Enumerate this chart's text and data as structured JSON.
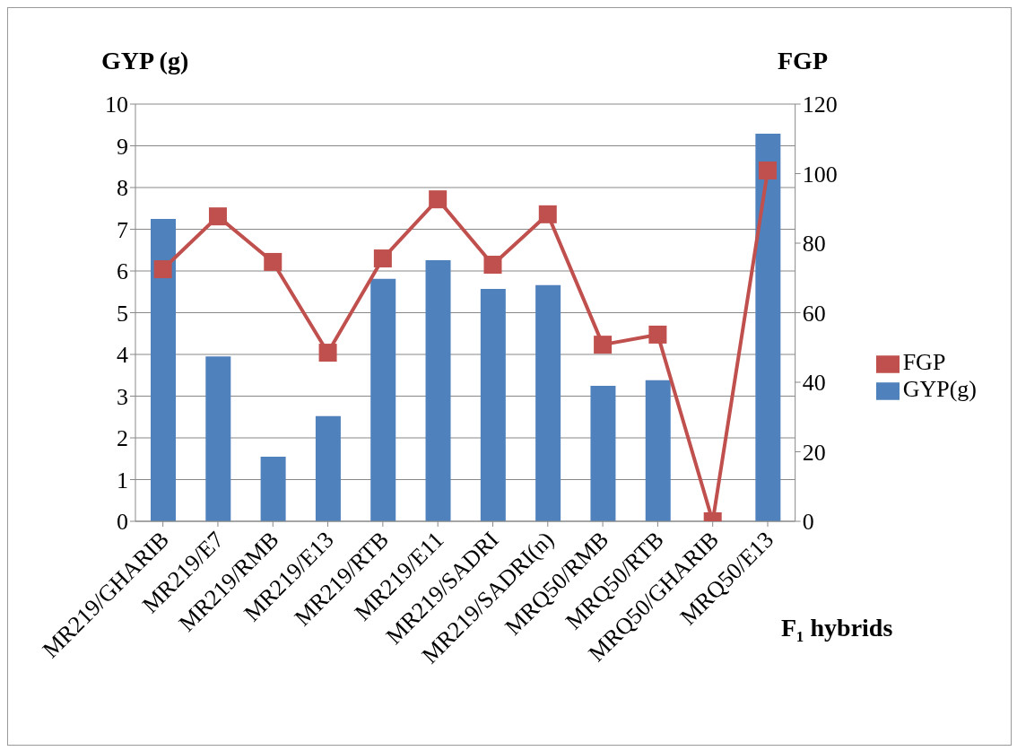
{
  "chart_data": {
    "type": "bar",
    "ylabel": "GYP (g)",
    "y2label": "FGP",
    "xlabel": "F₁ hybrids",
    "categories": [
      "MR219/GHARIB",
      "MR219/E7",
      "MR219/RMB",
      "MR219/E13",
      "MR219/RTB",
      "MR219/E11",
      "MR219/SADRI",
      "MR219/SADRI(n)",
      "MRQ50/RMB",
      "MRQ50/RTB",
      "MRQ50/GHARIB",
      "MRQ50/E13"
    ],
    "series": [
      {
        "name": "GYP(g)",
        "color": "#4f81bd",
        "values": [
          7.25,
          3.95,
          1.55,
          2.52,
          5.81,
          6.26,
          5.57,
          5.66,
          3.25,
          3.38,
          0,
          9.29
        ]
      },
      {
        "name": "FGP",
        "type": "line",
        "axis": "y2",
        "color": "#c0504d",
        "values": [
          72.5,
          87.7,
          74.6,
          48.5,
          75.6,
          92.6,
          73.8,
          88.3,
          50.8,
          53.7,
          0,
          100.9
        ]
      }
    ],
    "ylim": [
      0,
      10
    ],
    "yticks": [
      0,
      1,
      2,
      3,
      4,
      5,
      6,
      7,
      8,
      9,
      10
    ],
    "y2lim": [
      0,
      120
    ],
    "y2ticks": [
      0,
      20,
      40,
      60,
      80,
      100,
      120
    ],
    "grid": "y",
    "legend": "right",
    "marker": "square",
    "line_style": "solid"
  }
}
